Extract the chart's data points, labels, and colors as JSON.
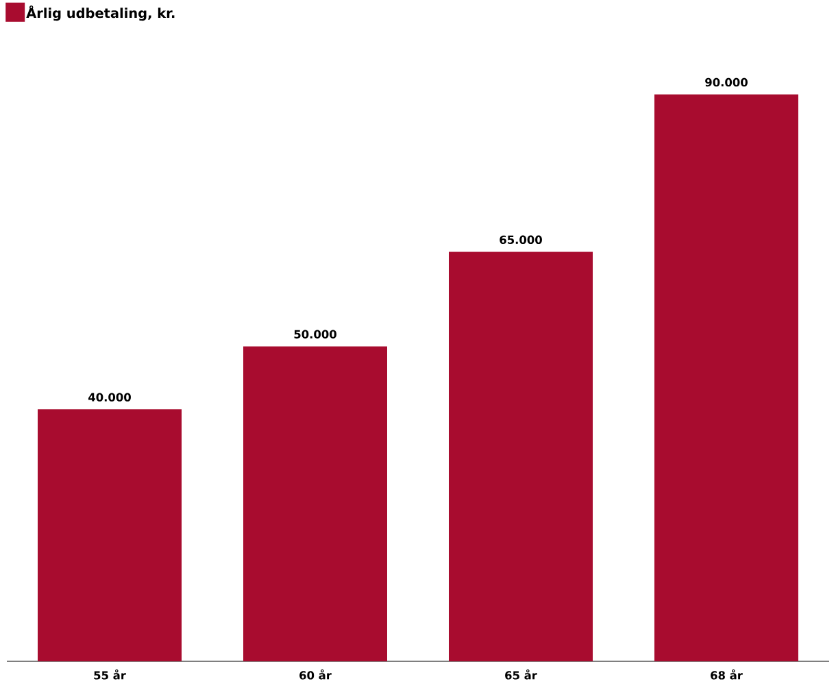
{
  "chart_data": {
    "type": "bar",
    "categories": [
      "55 år",
      "60 år",
      "65 år",
      "68 år"
    ],
    "series": [
      {
        "name": "Årlig udbetaling, kr.",
        "color": "#a80c2f",
        "values": [
          40000,
          50000,
          65000,
          90000
        ],
        "value_labels": [
          "40.000",
          "50.000",
          "65.000",
          "90.000"
        ]
      }
    ],
    "legend": "top left"
  }
}
